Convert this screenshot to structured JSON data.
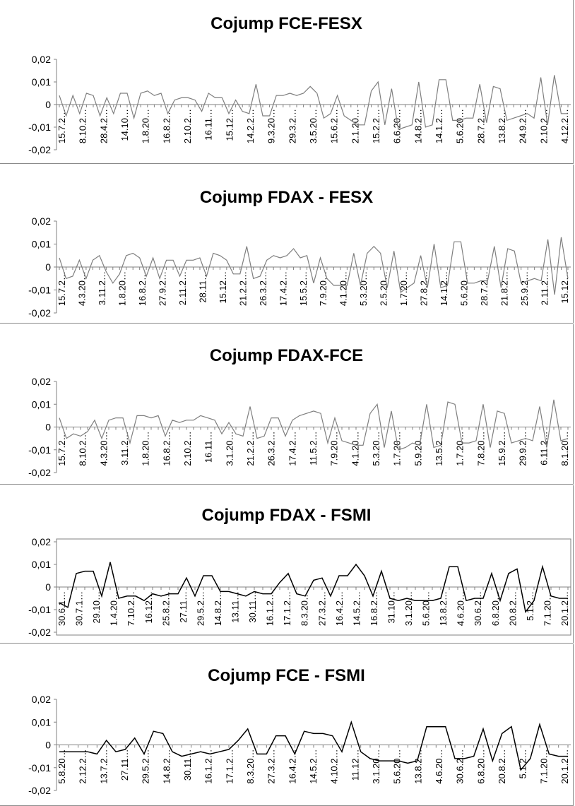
{
  "chart_data": [
    {
      "type": "line",
      "title": "Cojump FCE-FESX",
      "ylim": [
        -0.02,
        0.02
      ],
      "y_ticks": [
        "0,02",
        "0,01",
        "0",
        "-0,01",
        "-0,02"
      ],
      "x_tick_labels": [
        "15.7.2…",
        "8.10.2…",
        "28.4.2…",
        "14.10…",
        "1.8.20…",
        "16.8.2…",
        "2.10.2…",
        "16.11…",
        "15.12…",
        "14.2.2…",
        "9.3.20…",
        "29.3.2…",
        "3.5.20…",
        "15.6.2…",
        "2.1.20…",
        "15.2.2…",
        "6.6.20…",
        "14.8.2…",
        "14.1.2…",
        "5.6.20…",
        "28.7.2…",
        "13.8.2…",
        "24.9.2…",
        "2.10.2…",
        "4.12.2…"
      ],
      "line_color": "#7f7f7f",
      "series": [
        {
          "values": [
            0.004,
            -0.005,
            0.004,
            -0.004,
            0.005,
            0.004,
            -0.005,
            0.003,
            -0.004,
            0.005,
            0.005,
            -0.006,
            0.005,
            0.006,
            0.004,
            0.005,
            -0.004,
            0.002,
            0.003,
            0.003,
            0.002,
            -0.003,
            0.005,
            0.003,
            0.003,
            -0.004,
            0.002,
            -0.003,
            -0.004,
            0.009,
            -0.005,
            -0.005,
            0.004,
            0.004,
            0.005,
            0.004,
            0.005,
            0.008,
            0.005,
            -0.006,
            -0.004,
            0.004,
            -0.005,
            -0.007,
            -0.009,
            -0.009,
            0.006,
            0.01,
            -0.009,
            0.007,
            -0.011,
            -0.01,
            -0.009,
            0.01,
            -0.01,
            -0.009,
            0.011,
            0.011,
            -0.007,
            -0.007,
            -0.006,
            -0.006,
            0.009,
            -0.008,
            0.008,
            0.007,
            -0.007,
            -0.006,
            -0.005,
            -0.004,
            -0.006,
            0.012,
            -0.009,
            0.013,
            -0.004,
            -0.004
          ]
        }
      ]
    },
    {
      "type": "line",
      "title": "Cojump FDAX - FESX",
      "ylim": [
        -0.02,
        0.02
      ],
      "y_ticks": [
        "0,02",
        "0,01",
        "0",
        "-0,01",
        "-0,02"
      ],
      "x_tick_labels": [
        "15.7.2…",
        "4.3.20…",
        "3.11.2…",
        "1.8.20…",
        "16.8.2…",
        "27.9.2…",
        "2.11.2…",
        "28.11…",
        "15.12…",
        "21.2.2…",
        "26.3.2…",
        "17.4.2…",
        "15.5.2…",
        "7.9.20…",
        "4.1.20…",
        "5.3.20…",
        "2.5.20…",
        "1.7.20…",
        "27.8.2…",
        "14.1.2…",
        "5.6.20…",
        "28.7.2…",
        "21.8.2…",
        "25.9.2…",
        "2.11.2…",
        "15.12…"
      ],
      "line_color": "#7f7f7f",
      "series": [
        {
          "values": [
            0.004,
            -0.005,
            -0.004,
            0.003,
            -0.005,
            0.003,
            0.005,
            -0.002,
            -0.007,
            -0.003,
            0.005,
            0.006,
            0.004,
            -0.004,
            0.004,
            -0.005,
            0.003,
            0.003,
            -0.004,
            0.003,
            0.003,
            0.004,
            -0.004,
            0.006,
            0.005,
            0.003,
            -0.003,
            -0.003,
            0.009,
            -0.005,
            -0.004,
            0.003,
            0.005,
            0.004,
            0.005,
            0.008,
            0.004,
            0.005,
            -0.007,
            0.004,
            -0.005,
            -0.008,
            -0.008,
            -0.008,
            0.006,
            -0.008,
            0.006,
            0.009,
            0.006,
            -0.009,
            0.007,
            -0.011,
            -0.009,
            -0.007,
            0.005,
            -0.009,
            0.01,
            -0.009,
            -0.008,
            0.011,
            0.011,
            -0.007,
            -0.007,
            -0.006,
            -0.006,
            0.009,
            -0.009,
            0.008,
            0.007,
            -0.007,
            -0.006,
            -0.005,
            -0.006,
            0.012,
            -0.012,
            0.013,
            -0.005
          ]
        }
      ]
    },
    {
      "type": "line",
      "title": "Cojump FDAX-FCE",
      "ylim": [
        -0.02,
        0.02
      ],
      "y_ticks": [
        "0,02",
        "0,01",
        "0",
        "-0,01",
        "-0,02"
      ],
      "x_tick_labels": [
        "15.7.2…",
        "8.10.2…",
        "4.3.20…",
        "3.11.2…",
        "1.8.20…",
        "16.8.2…",
        "2.10.2…",
        "16.11…",
        "3.1.20…",
        "21.2.2…",
        "26.3.2…",
        "17.4.2…",
        "11.5.2…",
        "7.9.20…",
        "4.1.20…",
        "5.3.20…",
        "1.7.20…",
        "5.9.20…",
        "13.5.2…",
        "1.7.20…",
        "7.8.20…",
        "15.9.2…",
        "29.9.2…",
        "6.11.2…",
        "8.1.20…"
      ],
      "line_color": "#7f7f7f",
      "series": [
        {
          "values": [
            0.004,
            -0.005,
            -0.003,
            -0.004,
            -0.002,
            0.003,
            -0.005,
            0.003,
            0.004,
            0.004,
            -0.007,
            0.005,
            0.005,
            0.004,
            0.005,
            -0.004,
            0.003,
            0.002,
            0.003,
            0.003,
            0.005,
            0.004,
            0.003,
            -0.003,
            0.002,
            -0.003,
            -0.004,
            0.009,
            -0.005,
            -0.004,
            0.004,
            0.004,
            -0.004,
            0.003,
            0.005,
            0.006,
            0.007,
            0.006,
            -0.007,
            0.004,
            -0.006,
            -0.007,
            -0.008,
            -0.008,
            0.006,
            0.01,
            -0.009,
            0.007,
            -0.01,
            -0.009,
            -0.007,
            -0.008,
            0.01,
            -0.009,
            -0.008,
            0.011,
            0.01,
            -0.007,
            -0.007,
            -0.006,
            0.01,
            -0.009,
            0.007,
            0.006,
            -0.007,
            -0.006,
            -0.005,
            -0.006,
            0.009,
            -0.009,
            0.012,
            -0.006,
            -0.005
          ]
        }
      ]
    },
    {
      "type": "line",
      "title": "Cojump FDAX - FSMI",
      "ylim": [
        -0.02,
        0.02
      ],
      "y_ticks": [
        "0,02",
        "0,01",
        "0",
        "-0,01",
        "-0,02"
      ],
      "x_tick_labels": [
        "30.6.1…",
        "30.7.1…",
        "29.10…",
        "1.4.20…",
        "7.10.2…",
        "16.12…",
        "25.8.2…",
        "27.11…",
        "29.5.2…",
        "14.8.2…",
        "13.11…",
        "30.11…",
        "16.1.2…",
        "17.1.2…",
        "8.3.20…",
        "27.3.2…",
        "16.4.2…",
        "14.5.2…",
        "16.8.2…",
        "31.10…",
        "3.1.20…",
        "5.6.20…",
        "13.8.2…",
        "4.6.20…",
        "30.6.2…",
        "6.8.20…",
        "20.8.2…",
        "5.1.2…",
        "7.1.20…",
        "20.1.2…"
      ],
      "line_color": "#000000",
      "plot_border": true,
      "series": [
        {
          "values": [
            -0.007,
            -0.009,
            0.006,
            0.007,
            0.007,
            -0.004,
            0.011,
            -0.005,
            -0.004,
            -0.004,
            -0.006,
            -0.003,
            -0.004,
            -0.003,
            -0.003,
            0.004,
            -0.004,
            0.005,
            0.005,
            -0.002,
            -0.002,
            -0.003,
            -0.004,
            -0.002,
            -0.003,
            -0.003,
            0.002,
            0.006,
            -0.003,
            -0.004,
            0.003,
            0.004,
            -0.004,
            0.005,
            0.005,
            0.01,
            0.005,
            -0.004,
            0.007,
            -0.005,
            -0.006,
            -0.005,
            -0.006,
            -0.006,
            -0.006,
            -0.005,
            0.009,
            0.009,
            -0.006,
            -0.005,
            -0.005,
            0.006,
            -0.006,
            0.006,
            0.008,
            -0.011,
            -0.006,
            0.009,
            -0.004,
            -0.005,
            -0.005
          ]
        }
      ]
    },
    {
      "type": "line",
      "title": "Cojump FCE - FSMI",
      "ylim": [
        -0.02,
        0.02
      ],
      "y_ticks": [
        "0,02",
        "0,01",
        "0",
        "-0,01",
        "-0,02"
      ],
      "x_tick_labels": [
        "5.8.20…",
        "2.12.2…",
        "13.7.2…",
        "27.11…",
        "29.5.2…",
        "14.8.2…",
        "30.11…",
        "16.1.2…",
        "17.1.2…",
        "8.3.20…",
        "27.3.2…",
        "16.4.2…",
        "14.5.2…",
        "4.10.2…",
        "11.12…",
        "3.1.20…",
        "5.6.20…",
        "13.8.2…",
        "4.6.20…",
        "30.6.2…",
        "6.8.20…",
        "20.8.2…",
        "5.1.2…",
        "7.1.20…",
        "20.1.2…"
      ],
      "line_color": "#000000",
      "series": [
        {
          "values": [
            -0.003,
            -0.003,
            -0.003,
            -0.003,
            -0.004,
            0.002,
            -0.003,
            -0.002,
            0.003,
            -0.004,
            0.006,
            0.005,
            -0.003,
            -0.005,
            -0.004,
            -0.003,
            -0.004,
            -0.003,
            -0.002,
            0.002,
            0.007,
            -0.004,
            -0.004,
            0.004,
            0.004,
            -0.004,
            0.006,
            0.005,
            0.005,
            0.004,
            -0.003,
            0.01,
            -0.003,
            -0.006,
            -0.007,
            -0.007,
            -0.007,
            -0.008,
            -0.007,
            0.008,
            0.008,
            0.008,
            -0.006,
            -0.006,
            -0.005,
            0.007,
            -0.007,
            0.005,
            0.008,
            -0.011,
            -0.006,
            0.009,
            -0.004,
            -0.005,
            -0.005
          ]
        }
      ]
    }
  ]
}
